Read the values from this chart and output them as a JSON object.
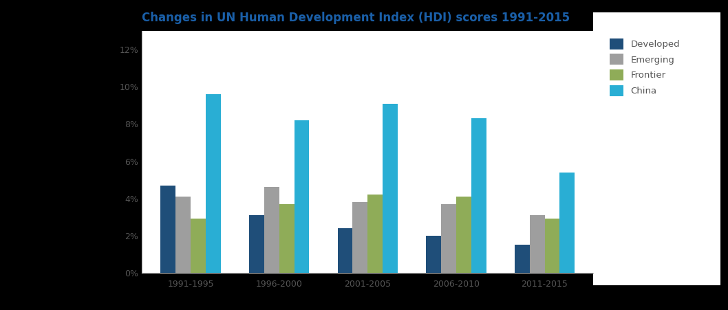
{
  "title": "Changes in UN Human Development Index (HDI) scores 1991-2015",
  "title_color": "#1a5fa8",
  "categories": [
    "1991-1995",
    "1996-2000",
    "2001-2005",
    "2006-2010",
    "2011-2015"
  ],
  "series": [
    {
      "name": "Developed",
      "color": "#1f4e79",
      "values": [
        0.047,
        0.031,
        0.024,
        0.02,
        0.015
      ]
    },
    {
      "name": "Emerging",
      "color": "#9e9e9e",
      "values": [
        0.041,
        0.046,
        0.038,
        0.037,
        0.031
      ]
    },
    {
      "name": "Frontier",
      "color": "#8fac58",
      "values": [
        0.029,
        0.037,
        0.042,
        0.041,
        0.029
      ]
    },
    {
      "name": "China",
      "color": "#29aed4",
      "values": [
        0.096,
        0.082,
        0.091,
        0.083,
        0.054
      ]
    }
  ],
  "ylim": [
    0,
    0.13
  ],
  "yticks": [
    0.0,
    0.02,
    0.04,
    0.06,
    0.08,
    0.1,
    0.12
  ],
  "figure_bg_color": "#000000",
  "plot_bg_color": "#ffffff",
  "bar_width": 0.17,
  "tick_label_color": "#555555",
  "tick_label_size": 9,
  "title_fontsize": 12
}
